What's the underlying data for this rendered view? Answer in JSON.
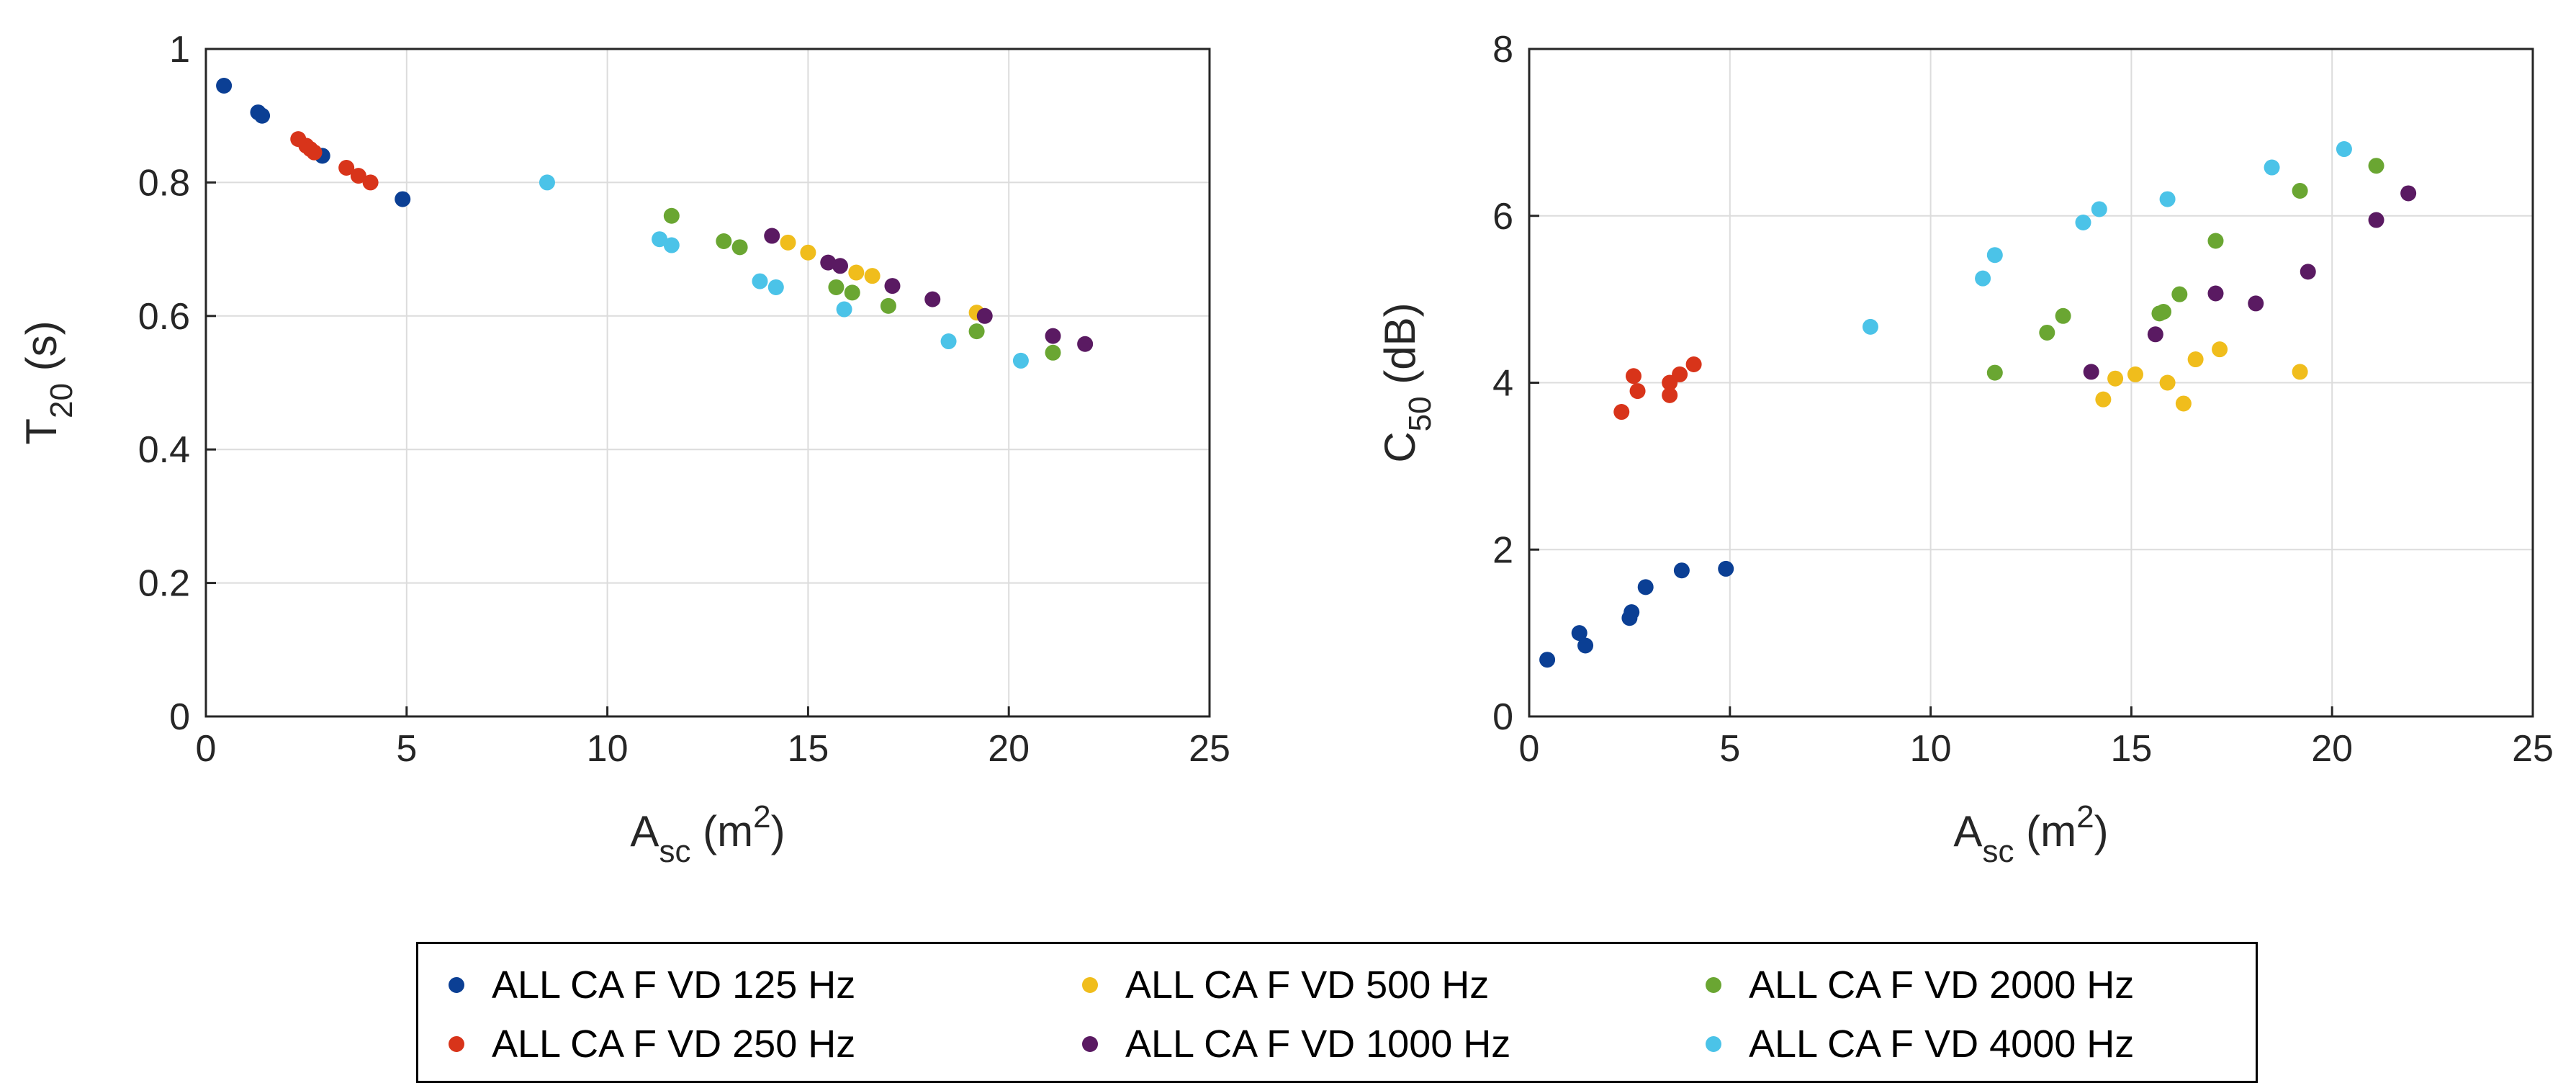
{
  "chart_data": [
    {
      "type": "scatter",
      "ylabel_base": "T",
      "ylabel_sub": "20",
      "ylabel_rest": " (s)",
      "xlabel_base": "A",
      "xlabel_sub": "sc",
      "xlabel_rest": " (m",
      "xlabel_sup": "2",
      "xlabel_close": ")",
      "xlim": [
        0,
        25
      ],
      "ylim": [
        0,
        1
      ],
      "xticks": [
        "0",
        "5",
        "10",
        "15",
        "20",
        "25"
      ],
      "yticks": [
        "0",
        "0.2",
        "0.4",
        "0.6",
        "0.8",
        "1"
      ],
      "grid": true,
      "series": [
        {
          "name": "ALL CA F VD 125 Hz",
          "color": "#0b3f94",
          "points": [
            [
              0.45,
              0.945
            ],
            [
              1.3,
              0.905
            ],
            [
              1.4,
              0.9
            ],
            [
              2.9,
              0.84
            ],
            [
              4.9,
              0.775
            ]
          ]
        },
        {
          "name": "ALL CA F VD 250 Hz",
          "color": "#d8341a",
          "points": [
            [
              2.3,
              0.865
            ],
            [
              2.5,
              0.855
            ],
            [
              2.6,
              0.85
            ],
            [
              2.7,
              0.845
            ],
            [
              3.5,
              0.822
            ],
            [
              3.8,
              0.81
            ],
            [
              4.1,
              0.8
            ]
          ]
        },
        {
          "name": "ALL CA F VD 500 Hz",
          "color": "#f0bd1c",
          "points": [
            [
              14.5,
              0.71
            ],
            [
              15.0,
              0.695
            ],
            [
              16.2,
              0.665
            ],
            [
              16.6,
              0.66
            ],
            [
              19.2,
              0.605
            ]
          ]
        },
        {
          "name": "ALL CA F VD 1000 Hz",
          "color": "#5a1a62",
          "points": [
            [
              14.1,
              0.72
            ],
            [
              15.5,
              0.68
            ],
            [
              15.8,
              0.675
            ],
            [
              17.1,
              0.645
            ],
            [
              18.1,
              0.625
            ],
            [
              19.4,
              0.6
            ],
            [
              21.1,
              0.57
            ],
            [
              21.9,
              0.558
            ]
          ]
        },
        {
          "name": "ALL CA F VD 2000 Hz",
          "color": "#6aa632",
          "points": [
            [
              11.6,
              0.75
            ],
            [
              12.9,
              0.712
            ],
            [
              13.3,
              0.703
            ],
            [
              15.7,
              0.643
            ],
            [
              16.1,
              0.635
            ],
            [
              17.0,
              0.615
            ],
            [
              19.2,
              0.577
            ],
            [
              21.1,
              0.545
            ]
          ]
        },
        {
          "name": "ALL CA F VD 4000 Hz",
          "color": "#4bc3e8",
          "points": [
            [
              8.5,
              0.8
            ],
            [
              11.3,
              0.715
            ],
            [
              11.6,
              0.706
            ],
            [
              13.8,
              0.652
            ],
            [
              14.2,
              0.643
            ],
            [
              15.9,
              0.61
            ],
            [
              18.5,
              0.562
            ],
            [
              20.3,
              0.533
            ]
          ]
        }
      ]
    },
    {
      "type": "scatter",
      "ylabel_base": "C",
      "ylabel_sub": "50",
      "ylabel_rest": " (dB)",
      "xlabel_base": "A",
      "xlabel_sub": "sc",
      "xlabel_rest": " (m",
      "xlabel_sup": "2",
      "xlabel_close": ")",
      "xlim": [
        0,
        25
      ],
      "ylim": [
        0,
        8
      ],
      "xticks": [
        "0",
        "5",
        "10",
        "15",
        "20",
        "25"
      ],
      "yticks": [
        "0",
        "2",
        "4",
        "6",
        "8"
      ],
      "grid": true,
      "series": [
        {
          "name": "ALL CA F VD 125 Hz",
          "color": "#0b3f94",
          "points": [
            [
              0.45,
              0.68
            ],
            [
              1.25,
              1.0
            ],
            [
              1.4,
              0.85
            ],
            [
              2.5,
              1.18
            ],
            [
              2.55,
              1.25
            ],
            [
              2.9,
              1.55
            ],
            [
              3.8,
              1.75
            ],
            [
              4.9,
              1.77
            ]
          ]
        },
        {
          "name": "ALL CA F VD 250 Hz",
          "color": "#d8341a",
          "points": [
            [
              2.3,
              3.65
            ],
            [
              2.6,
              4.08
            ],
            [
              2.7,
              3.9
            ],
            [
              3.5,
              3.85
            ],
            [
              3.5,
              4.0
            ],
            [
              3.75,
              4.1
            ],
            [
              4.1,
              4.22
            ]
          ]
        },
        {
          "name": "ALL CA F VD 500 Hz",
          "color": "#f0bd1c",
          "points": [
            [
              14.3,
              3.8
            ],
            [
              14.6,
              4.05
            ],
            [
              15.1,
              4.1
            ],
            [
              15.9,
              4.0
            ],
            [
              16.3,
              3.75
            ],
            [
              16.6,
              4.28
            ],
            [
              17.2,
              4.4
            ],
            [
              19.2,
              4.13
            ]
          ]
        },
        {
          "name": "ALL CA F VD 1000 Hz",
          "color": "#5a1a62",
          "points": [
            [
              14.0,
              4.13
            ],
            [
              15.6,
              4.58
            ],
            [
              17.1,
              5.07
            ],
            [
              18.1,
              4.95
            ],
            [
              19.4,
              5.33
            ],
            [
              21.1,
              5.95
            ],
            [
              21.9,
              6.27
            ]
          ]
        },
        {
          "name": "ALL CA F VD 2000 Hz",
          "color": "#6aa632",
          "points": [
            [
              11.6,
              4.12
            ],
            [
              12.9,
              4.6
            ],
            [
              13.3,
              4.8
            ],
            [
              15.7,
              4.83
            ],
            [
              15.8,
              4.85
            ],
            [
              16.2,
              5.06
            ],
            [
              17.1,
              5.7
            ],
            [
              19.2,
              6.3
            ],
            [
              21.1,
              6.6
            ]
          ]
        },
        {
          "name": "ALL CA F VD 4000 Hz",
          "color": "#4bc3e8",
          "points": [
            [
              8.5,
              4.67
            ],
            [
              11.3,
              5.25
            ],
            [
              11.6,
              5.53
            ],
            [
              13.8,
              5.92
            ],
            [
              14.2,
              6.08
            ],
            [
              15.9,
              6.2
            ],
            [
              18.5,
              6.58
            ],
            [
              20.3,
              6.8
            ]
          ]
        }
      ]
    }
  ],
  "legend": [
    {
      "label": "ALL CA F VD 125 Hz",
      "color": "#0b3f94"
    },
    {
      "label": "ALL CA F VD 250 Hz",
      "color": "#d8341a"
    },
    {
      "label": "ALL CA F VD 500 Hz",
      "color": "#f0bd1c"
    },
    {
      "label": "ALL CA F VD 1000 Hz",
      "color": "#5a1a62"
    },
    {
      "label": "ALL CA F VD 2000 Hz",
      "color": "#6aa632"
    },
    {
      "label": "ALL CA F VD 4000 Hz",
      "color": "#4bc3e8"
    }
  ]
}
